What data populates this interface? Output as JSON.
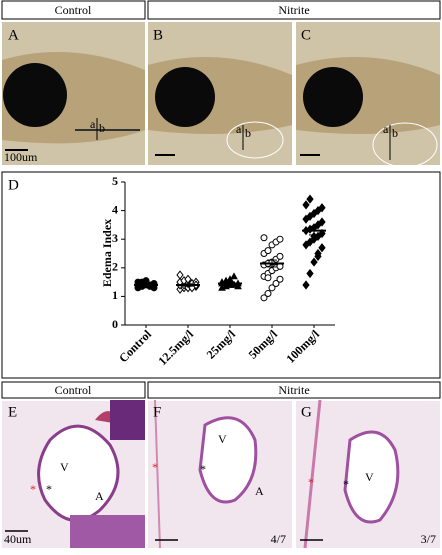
{
  "header_top": {
    "control": "Control",
    "nitrite": "Nitrite"
  },
  "panels_top": [
    {
      "label": "A",
      "mark_a": "a",
      "mark_b": "b",
      "scale": "100um"
    },
    {
      "label": "B",
      "mark_a": "a",
      "mark_b": "b"
    },
    {
      "label": "C",
      "mark_a": "a",
      "mark_b": "b"
    }
  ],
  "chart_data": {
    "type": "scatter",
    "panel_label": "D",
    "y_label": "Edema Index",
    "categories": [
      "Control",
      "12.5mg/l",
      "25mg/l",
      "50mg/l",
      "100mg/l"
    ],
    "markers": [
      "circle",
      "diamond-open",
      "triangle",
      "circle-open",
      "diamond"
    ],
    "color": "#000000",
    "values": [
      [
        1.3,
        1.35,
        1.4,
        1.4,
        1.45,
        1.5,
        1.5,
        1.55,
        1.35,
        1.3,
        1.4,
        1.45
      ],
      [
        1.25,
        1.3,
        1.3,
        1.35,
        1.35,
        1.4,
        1.4,
        1.45,
        1.45,
        1.5,
        1.5,
        1.55,
        1.6,
        1.3,
        1.4,
        1.75
      ],
      [
        1.3,
        1.35,
        1.4,
        1.4,
        1.45,
        1.5,
        1.55,
        1.6,
        1.7,
        1.35,
        1.45,
        1.5
      ],
      [
        0.95,
        1.1,
        1.3,
        1.45,
        1.6,
        1.7,
        1.8,
        1.9,
        2.0,
        2.05,
        2.1,
        2.15,
        2.2,
        2.3,
        2.4,
        2.5,
        2.6,
        2.8,
        2.9,
        3.0,
        3.05,
        1.65
      ],
      [
        1.4,
        1.8,
        2.2,
        2.5,
        2.7,
        2.8,
        2.9,
        3.0,
        3.1,
        3.2,
        3.3,
        3.35,
        3.4,
        3.5,
        3.6,
        3.7,
        3.8,
        3.9,
        4.0,
        4.1,
        4.2,
        4.4,
        3.1,
        2.4
      ]
    ],
    "means": [
      1.4,
      1.4,
      1.45,
      2.15,
      3.3
    ],
    "errors": [
      0.04,
      0.04,
      0.05,
      0.12,
      0.15
    ],
    "ylim": [
      0,
      5
    ],
    "yticks": [
      0,
      1,
      2,
      3,
      4,
      5
    ]
  },
  "header_bottom": {
    "control": "Control",
    "nitrite": "Nitrite"
  },
  "panels_bottom": [
    {
      "label": "E",
      "ventricle": "V",
      "atrium": "A",
      "star": "*",
      "red_star": "*",
      "scale": "40um"
    },
    {
      "label": "F",
      "ventricle": "V",
      "atrium": "A",
      "star": "*",
      "red_star": "*",
      "count": "4/7"
    },
    {
      "label": "G",
      "ventricle": "V",
      "star": "*",
      "red_star": "*",
      "count": "3/7"
    }
  ]
}
